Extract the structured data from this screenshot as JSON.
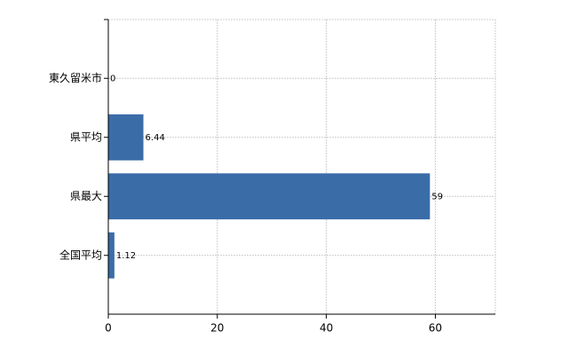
{
  "chart_data": {
    "type": "bar",
    "orientation": "horizontal",
    "categories": [
      "東久留米市",
      "県平均",
      "県最大",
      "全国平均"
    ],
    "values": [
      0,
      6.44,
      59,
      1.12
    ],
    "color": "#3a6ca8",
    "xlim": [
      0,
      71
    ],
    "xticks": [
      0,
      20,
      40,
      60
    ],
    "grid": true
  }
}
